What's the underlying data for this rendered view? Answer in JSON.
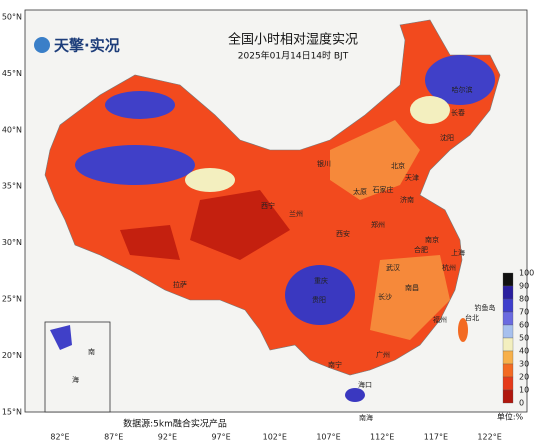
{
  "header": {
    "logo": "天擎·实况",
    "title": "全国小时相对湿度实况",
    "subtitle": "2025年01月14日14时 BJT"
  },
  "latitude_labels": [
    "50°N",
    "45°N",
    "40°N",
    "35°N",
    "30°N",
    "25°N",
    "20°N",
    "15°N"
  ],
  "longitude_labels": [
    "82°E",
    "87°E",
    "92°E",
    "97°E",
    "102°E",
    "107°E",
    "112°E",
    "117°E",
    "122°E"
  ],
  "colorbar": {
    "ticks": [
      100,
      90,
      80,
      70,
      60,
      50,
      40,
      30,
      20,
      10,
      0
    ],
    "colors": [
      "#111111",
      "#2a1f9e",
      "#3f3fcc",
      "#6a6ae0",
      "#a7c0ee",
      "#f3efbf",
      "#f7b04a",
      "#f36a22",
      "#e53a1a",
      "#b0170e"
    ],
    "unit": "单位:%"
  },
  "cities": [
    "哈尔滨",
    "长春",
    "沈阳",
    "北京",
    "天津",
    "石家庄",
    "太原",
    "济南",
    "银川",
    "兰州",
    "西宁",
    "西安",
    "郑州",
    "南京",
    "合肥",
    "上海",
    "武汉",
    "杭州",
    "重庆",
    "贵阳",
    "长沙",
    "南昌",
    "福州",
    "台北",
    "广州",
    "南宁",
    "海口",
    "拉萨",
    "钓鱼岛",
    "南海"
  ],
  "inset_labels": [
    "南",
    "海"
  ],
  "source": "数据源:5km融合实况产品"
}
